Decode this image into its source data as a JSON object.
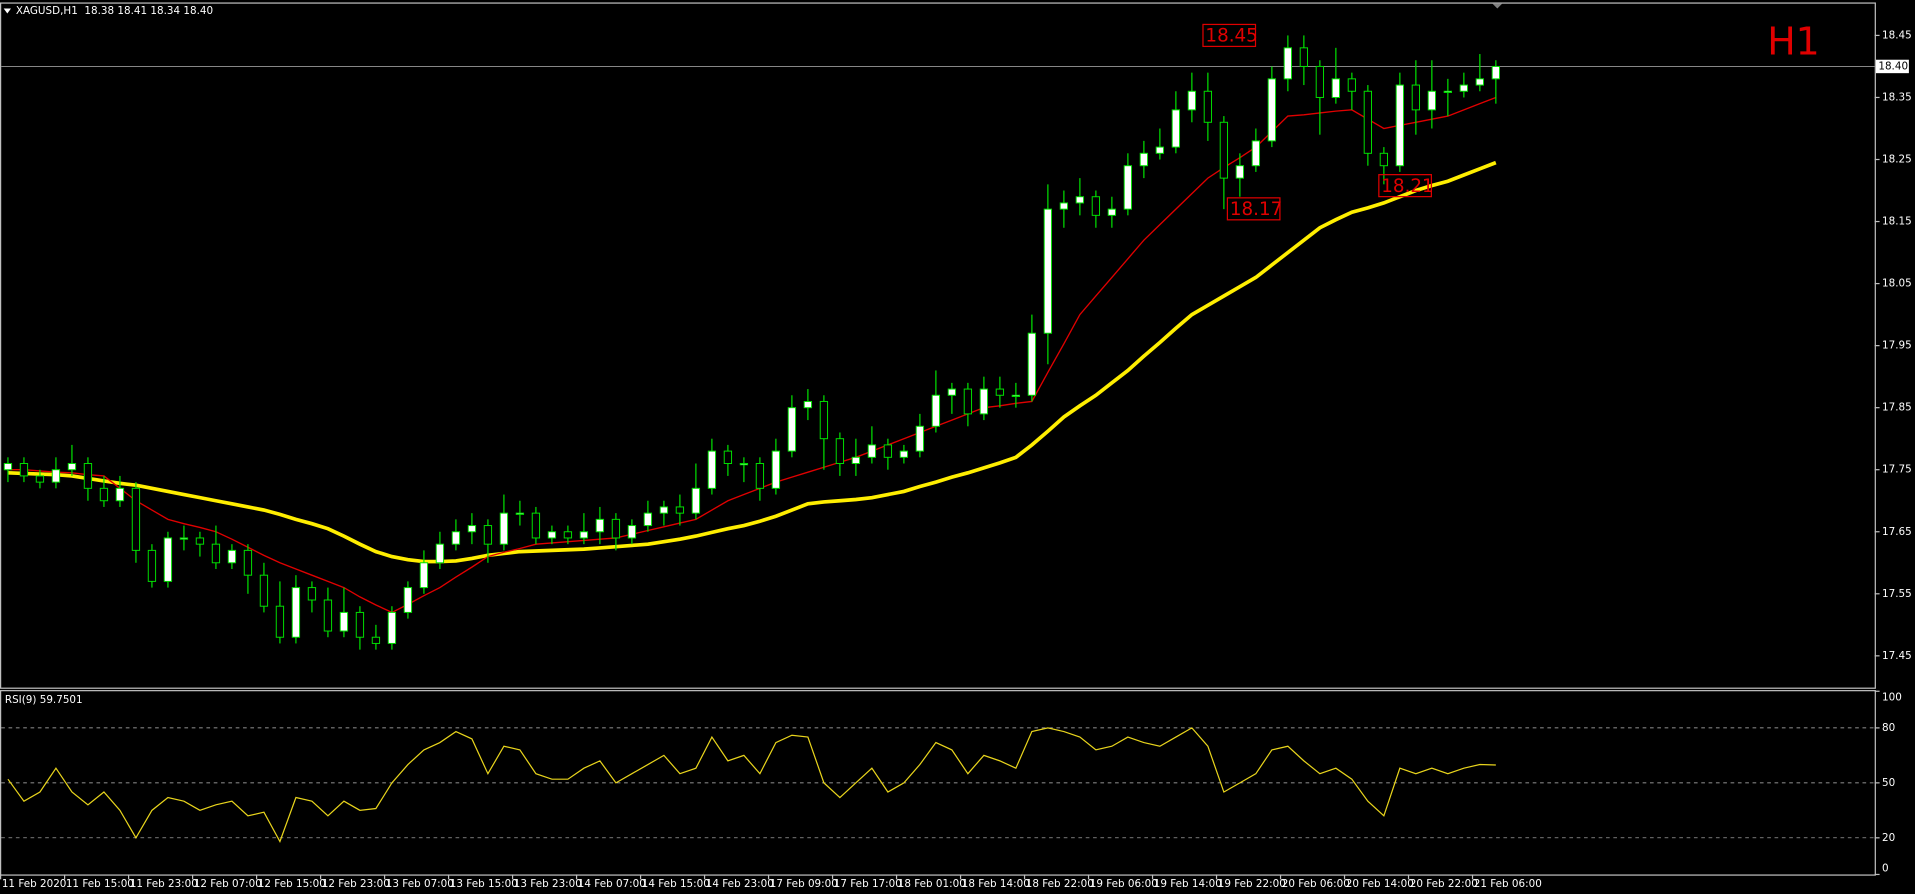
{
  "chart_data": [
    {
      "type": "candlestick",
      "title": "XAGUSD,H1  18.38 18.41 18.34 18.40",
      "label": "H1",
      "categories": [
        "11 Feb 2020",
        null,
        null,
        null,
        "11 Feb 15:00",
        null,
        null,
        null,
        "11 Feb 23:00",
        null,
        null,
        null,
        "12 Feb 07:00",
        null,
        null,
        null,
        "12 Feb 15:00",
        null,
        null,
        null,
        "12 Feb 23:00",
        null,
        null,
        null,
        "13 Feb 07:00",
        null,
        null,
        null,
        "13 Feb 15:00",
        null,
        null,
        null,
        "13 Feb 23:00",
        null,
        null,
        null,
        "14 Feb 07:00",
        null,
        null,
        null,
        "14 Feb 15:00",
        null,
        null,
        null,
        "14 Feb 23:00",
        null,
        null,
        null,
        "17 Feb 09:00",
        null,
        null,
        null,
        "17 Feb 17:00",
        null,
        null,
        null,
        "18 Feb 01:00",
        null,
        null,
        null,
        "18 Feb 14:00",
        null,
        null,
        null,
        "18 Feb 22:00",
        null,
        null,
        null,
        "19 Feb 06:00",
        null,
        null,
        null,
        "19 Feb 14:00",
        null,
        null,
        null,
        "19 Feb 22:00",
        null,
        null,
        null,
        "20 Feb 06:00",
        null,
        null,
        null,
        "20 Feb 14:00",
        null,
        null,
        null,
        "20 Feb 22:00",
        null,
        null,
        null,
        "21 Feb 06:00",
        null
      ],
      "open": [
        17.75,
        17.76,
        17.74,
        17.73,
        17.75,
        17.76,
        17.72,
        17.7,
        17.72,
        17.62,
        17.57,
        17.64,
        17.64,
        17.63,
        17.6,
        17.62,
        17.58,
        17.53,
        17.48,
        17.56,
        17.54,
        17.49,
        17.52,
        17.48,
        17.47,
        17.52,
        17.56,
        17.6,
        17.63,
        17.65,
        17.66,
        17.63,
        17.68,
        17.68,
        17.64,
        17.65,
        17.64,
        17.65,
        17.67,
        17.64,
        17.66,
        17.68,
        17.69,
        17.68,
        17.72,
        17.78,
        17.76,
        17.76,
        17.72,
        17.78,
        17.85,
        17.86,
        17.8,
        17.76,
        17.77,
        17.79,
        17.77,
        17.78,
        17.82,
        17.87,
        17.88,
        17.84,
        17.88,
        17.87,
        17.87,
        17.97,
        18.17,
        18.18,
        18.19,
        18.16,
        18.17,
        18.24,
        18.26,
        18.27,
        18.33,
        18.36,
        18.31,
        18.22,
        18.24,
        18.28,
        18.38,
        18.43,
        18.4,
        18.35,
        18.38,
        18.36,
        18.26,
        18.24,
        18.37,
        18.33,
        18.36,
        18.36,
        18.37,
        18.38
      ],
      "high": [
        17.77,
        17.77,
        17.75,
        17.77,
        17.79,
        17.77,
        17.74,
        17.74,
        17.73,
        17.63,
        17.65,
        17.66,
        17.65,
        17.66,
        17.63,
        17.63,
        17.6,
        17.57,
        17.58,
        17.57,
        17.56,
        17.56,
        17.53,
        17.5,
        17.53,
        17.57,
        17.62,
        17.65,
        17.67,
        17.68,
        17.67,
        17.71,
        17.7,
        17.69,
        17.66,
        17.66,
        17.68,
        17.69,
        17.68,
        17.67,
        17.7,
        17.7,
        17.71,
        17.76,
        17.8,
        17.79,
        17.77,
        17.77,
        17.8,
        17.87,
        17.88,
        17.87,
        17.81,
        17.8,
        17.82,
        17.8,
        17.79,
        17.84,
        17.91,
        17.89,
        17.89,
        17.9,
        17.9,
        17.89,
        18.0,
        18.21,
        18.2,
        18.22,
        18.2,
        18.19,
        18.26,
        18.28,
        18.3,
        18.36,
        18.39,
        18.39,
        18.32,
        18.26,
        18.3,
        18.4,
        18.45,
        18.45,
        18.41,
        18.43,
        18.39,
        18.37,
        18.27,
        18.39,
        18.41,
        18.41,
        18.38,
        18.39,
        18.42,
        18.41
      ],
      "low": [
        17.73,
        17.73,
        17.72,
        17.72,
        17.74,
        17.7,
        17.69,
        17.69,
        17.6,
        17.56,
        17.56,
        17.62,
        17.61,
        17.59,
        17.59,
        17.55,
        17.52,
        17.47,
        17.47,
        17.52,
        17.48,
        17.48,
        17.46,
        17.46,
        17.46,
        17.51,
        17.55,
        17.59,
        17.62,
        17.63,
        17.6,
        17.62,
        17.66,
        17.63,
        17.63,
        17.63,
        17.63,
        17.63,
        17.62,
        17.63,
        17.65,
        17.66,
        17.66,
        17.67,
        17.71,
        17.74,
        17.73,
        17.7,
        17.71,
        17.77,
        17.83,
        17.75,
        17.74,
        17.74,
        17.76,
        17.75,
        17.76,
        17.77,
        17.81,
        17.84,
        17.82,
        17.83,
        17.85,
        17.85,
        17.86,
        17.92,
        18.14,
        18.16,
        18.14,
        18.14,
        18.16,
        18.22,
        18.25,
        18.26,
        18.31,
        18.28,
        18.17,
        18.19,
        18.23,
        18.27,
        18.36,
        18.37,
        18.29,
        18.34,
        18.33,
        18.24,
        18.21,
        18.23,
        18.29,
        18.3,
        18.32,
        18.35,
        18.36,
        18.34
      ],
      "close": [
        17.76,
        17.74,
        17.73,
        17.75,
        17.76,
        17.72,
        17.7,
        17.72,
        17.62,
        17.57,
        17.64,
        17.64,
        17.63,
        17.6,
        17.62,
        17.58,
        17.53,
        17.48,
        17.56,
        17.54,
        17.49,
        17.52,
        17.48,
        17.47,
        17.52,
        17.56,
        17.6,
        17.63,
        17.65,
        17.66,
        17.63,
        17.68,
        17.68,
        17.64,
        17.65,
        17.64,
        17.65,
        17.67,
        17.64,
        17.66,
        17.68,
        17.69,
        17.68,
        17.72,
        17.78,
        17.76,
        17.76,
        17.72,
        17.78,
        17.85,
        17.86,
        17.8,
        17.76,
        17.77,
        17.79,
        17.77,
        17.78,
        17.82,
        17.87,
        17.88,
        17.84,
        17.88,
        17.87,
        17.87,
        17.97,
        18.17,
        18.18,
        18.19,
        18.16,
        18.17,
        18.24,
        18.26,
        18.27,
        18.33,
        18.36,
        18.31,
        18.22,
        18.24,
        18.28,
        18.38,
        18.43,
        18.4,
        18.35,
        18.38,
        18.36,
        18.26,
        18.24,
        18.37,
        18.33,
        18.36,
        18.36,
        18.37,
        18.38,
        18.4
      ],
      "up_color": "#ffffff",
      "down_color": "#000000",
      "wick_color": "#00e000",
      "lines": [
        {
          "color": "#ffee00",
          "values": [
            17.745,
            17.744,
            17.743,
            17.742,
            17.74,
            17.736,
            17.732,
            17.728,
            17.725,
            17.72,
            17.715,
            17.71,
            17.705,
            17.7,
            17.695,
            17.69,
            17.685,
            17.678,
            17.67,
            17.663,
            17.655,
            17.643,
            17.63,
            17.618,
            17.61,
            17.605,
            17.602,
            17.602,
            17.603,
            17.607,
            17.612,
            17.615,
            17.618,
            17.619,
            17.62,
            17.621,
            17.622,
            17.624,
            17.626,
            17.628,
            17.63,
            17.634,
            17.638,
            17.643,
            17.649,
            17.655,
            17.66,
            17.667,
            17.675,
            17.685,
            17.695,
            17.698,
            17.7,
            17.702,
            17.705,
            17.71,
            17.715,
            17.723,
            17.73,
            17.738,
            17.745,
            17.753,
            17.761,
            17.77,
            17.79,
            17.812,
            17.835,
            17.853,
            17.87,
            17.89,
            17.91,
            17.933,
            17.955,
            17.978,
            18.0,
            18.015,
            18.03,
            18.045,
            18.06,
            18.08,
            18.1,
            18.12,
            18.14,
            18.153,
            18.165,
            18.172,
            18.18,
            18.19,
            18.2,
            18.208,
            18.215,
            18.225,
            18.235,
            18.245
          ]
        },
        {
          "color": "#e00000",
          "values": [
            17.75,
            17.75,
            17.748,
            17.746,
            17.745,
            17.742,
            17.74,
            17.72,
            17.7,
            17.685,
            17.67,
            17.663,
            17.657,
            17.65,
            17.638,
            17.625,
            17.612,
            17.6,
            17.59,
            17.58,
            17.57,
            17.56,
            17.545,
            17.532,
            17.52,
            17.533,
            17.547,
            17.56,
            17.577,
            17.593,
            17.61,
            17.617,
            17.623,
            17.63,
            17.632,
            17.634,
            17.636,
            17.638,
            17.64,
            17.646,
            17.652,
            17.658,
            17.664,
            17.67,
            17.685,
            17.7,
            17.71,
            17.72,
            17.73,
            17.738,
            17.746,
            17.754,
            17.762,
            17.77,
            17.78,
            17.79,
            17.8,
            17.81,
            17.82,
            17.83,
            17.84,
            17.85,
            17.853,
            17.857,
            17.86,
            17.907,
            17.953,
            18.0,
            18.03,
            18.06,
            18.09,
            18.12,
            18.145,
            18.17,
            18.195,
            18.22,
            18.237,
            18.253,
            18.27,
            18.295,
            18.32,
            18.322,
            18.325,
            18.328,
            18.33,
            18.315,
            18.3,
            18.305,
            18.31,
            18.315,
            18.32,
            18.33,
            18.34,
            18.35
          ]
        }
      ],
      "current_price": {
        "value": 18.4,
        "label": "18.40"
      },
      "annotations": [
        {
          "value": 18.45,
          "color": "#e00000"
        },
        {
          "value": 18.17,
          "color": "#e00000"
        },
        {
          "value": 18.21,
          "color": "#e00000"
        }
      ],
      "ylim": [
        17.4,
        18.5
      ],
      "yticks": [
        17.45,
        17.55,
        17.65,
        17.75,
        17.85,
        17.95,
        18.05,
        18.15,
        18.25,
        18.35,
        18.45
      ]
    },
    {
      "type": "line",
      "title": "RSI(9) 59.7501",
      "color": "#e8d41c",
      "values": [
        52,
        40,
        45,
        58,
        45,
        38,
        45,
        35,
        20,
        35,
        42,
        40,
        35,
        38,
        40,
        32,
        34,
        18,
        42,
        40,
        32,
        40,
        35,
        36,
        50,
        60,
        68,
        72,
        78,
        74,
        55,
        70,
        68,
        55,
        52,
        52,
        58,
        62,
        50,
        55,
        60,
        65,
        55,
        58,
        75,
        62,
        65,
        55,
        72,
        76,
        75,
        50,
        42,
        50,
        58,
        45,
        50,
        60,
        72,
        68,
        55,
        65,
        62,
        58,
        78,
        80,
        78,
        75,
        68,
        70,
        75,
        72,
        70,
        75,
        80,
        70,
        45,
        50,
        55,
        68,
        70,
        62,
        55,
        58,
        52,
        40,
        32,
        58,
        55,
        58,
        55,
        58,
        60,
        59.7501
      ],
      "ylim": [
        0,
        100
      ],
      "yticks": [
        0,
        20,
        50,
        80,
        100
      ]
    }
  ]
}
